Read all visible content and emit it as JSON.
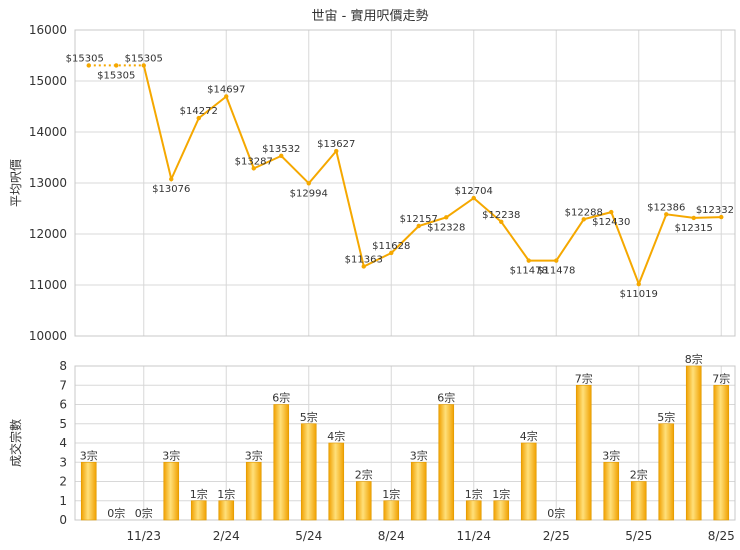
{
  "chart_data": [
    {
      "type": "line",
      "title": "世宙 - 實用呎價走勢",
      "ylabel": "平均呎價",
      "xlabel": "",
      "ylim": [
        10000,
        16000
      ],
      "yticks": [
        "10000",
        "11000",
        "12000",
        "13000",
        "14000",
        "15000",
        "16000"
      ],
      "x_ticks": [
        "11/23",
        "2/24",
        "5/24",
        "8/24",
        "11/24",
        "2/25",
        "5/25",
        "8/25"
      ],
      "grid": true,
      "color": "#f5a800",
      "values": [
        15305,
        15305,
        15305,
        13076,
        14272,
        14697,
        13287,
        13532,
        12994,
        13627,
        11363,
        11628,
        12157,
        12328,
        12704,
        12238,
        11478,
        11478,
        12288,
        12430,
        11019,
        12386,
        12315,
        12332
      ],
      "labels": [
        "$15305",
        "$15305",
        "$15305",
        "$13076",
        "$14272",
        "$14697",
        "$13287",
        "$13532",
        "$12994",
        "$13627",
        "$11363",
        "$11628",
        "$12157",
        "$12328",
        "$12704",
        "$12238",
        "$11478",
        "$11478",
        "$12288",
        "$12430",
        "$11019",
        "$12386",
        "$12315",
        "$12332"
      ]
    },
    {
      "type": "bar",
      "ylabel": "成交宗數",
      "xlabel": "",
      "ylim": [
        0,
        8
      ],
      "yticks": [
        "0",
        "1",
        "2",
        "3",
        "4",
        "5",
        "6",
        "7",
        "8"
      ],
      "x_ticks": [
        "11/23",
        "2/24",
        "5/24",
        "8/24",
        "11/24",
        "2/25",
        "5/25",
        "8/25"
      ],
      "grid": true,
      "color": "#f5a800",
      "values": [
        3,
        0,
        0,
        3,
        1,
        1,
        3,
        6,
        5,
        4,
        2,
        1,
        3,
        6,
        1,
        1,
        4,
        0,
        7,
        3,
        2,
        5,
        8,
        7
      ],
      "labels": [
        "3宗",
        "0宗",
        "0宗",
        "3宗",
        "1宗",
        "1宗",
        "3宗",
        "6宗",
        "5宗",
        "4宗",
        "2宗",
        "1宗",
        "3宗",
        "6宗",
        "1宗",
        "1宗",
        "4宗",
        "0宗",
        "7宗",
        "3宗",
        "2宗",
        "5宗",
        "8宗",
        "7宗"
      ]
    }
  ]
}
